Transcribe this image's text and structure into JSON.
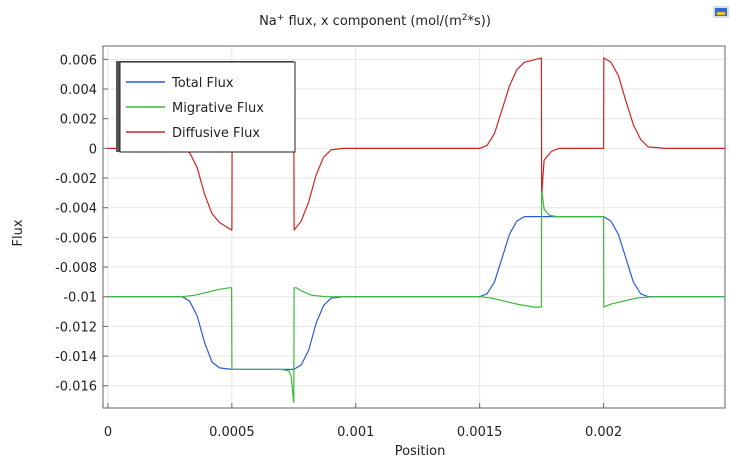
{
  "chart_data": {
    "type": "line",
    "title_main": "Na",
    "title_sup": "+",
    "title_rest": " flux, x component (mol/(m",
    "title_sup2": "2",
    "title_end": "*s))",
    "xlabel": "Position",
    "ylabel": "Flux",
    "xlim": [
      -2e-05,
      0.00249
    ],
    "ylim": [
      -0.0175,
      0.0069
    ],
    "x_ticks": [
      0,
      0.0005,
      0.001,
      0.0015,
      0.002
    ],
    "x_tick_labels": [
      "0",
      "0.0005",
      "0.001",
      "0.0015",
      "0.002"
    ],
    "y_ticks": [
      0.006,
      0.004,
      0.002,
      0,
      -0.002,
      -0.004,
      -0.006,
      -0.008,
      -0.01,
      -0.012,
      -0.014,
      -0.016
    ],
    "y_tick_labels": [
      "0.006",
      "0.004",
      "0.002",
      "0",
      "-0.002",
      "-0.004",
      "-0.006",
      "-0.008",
      "-0.01",
      "-0.012",
      "-0.014",
      "-0.016"
    ],
    "grid": true,
    "legend_position": "top-left",
    "series": [
      {
        "name": "Total Flux",
        "color": "#2a5bd7",
        "x": [
          0,
          0.0003,
          0.00033,
          0.00036,
          0.00039,
          0.00042,
          0.00045,
          0.0005,
          0.00075,
          0.00078,
          0.00081,
          0.00084,
          0.00087,
          0.0009,
          0.00095,
          0.0015,
          0.00153,
          0.00156,
          0.00159,
          0.00162,
          0.00165,
          0.00168,
          0.00175,
          0.002,
          0.00203,
          0.00206,
          0.00209,
          0.00212,
          0.00215,
          0.00218,
          0.00225,
          0.00249
        ],
        "y": [
          -0.01,
          -0.01,
          -0.0103,
          -0.0113,
          -0.0131,
          -0.0144,
          -0.0148,
          -0.0149,
          -0.0149,
          -0.0146,
          -0.0136,
          -0.0118,
          -0.0106,
          -0.0101,
          -0.01,
          -0.01,
          -0.0098,
          -0.009,
          -0.0074,
          -0.0058,
          -0.0049,
          -0.0046,
          -0.0046,
          -0.0046,
          -0.0049,
          -0.0058,
          -0.0074,
          -0.009,
          -0.0098,
          -0.01,
          -0.01,
          -0.01
        ]
      },
      {
        "name": "Migrative Flux",
        "color": "#3cb83c",
        "x": [
          0,
          0.0003,
          0.00035,
          0.0004,
          0.00045,
          0.00049,
          0.000499,
          0.0005,
          0.000501,
          0.00053,
          0.0006,
          0.0007,
          0.00073,
          0.00074,
          0.000749,
          0.00075,
          0.000751,
          0.00076,
          0.00078,
          0.00082,
          0.00088,
          0.00095,
          0.0015,
          0.00155,
          0.0016,
          0.00165,
          0.00172,
          0.001749,
          0.00175,
          0.001751,
          0.00176,
          0.00178,
          0.00181,
          0.00185,
          0.002,
          0.002001,
          0.00203,
          0.00208,
          0.00213,
          0.0022,
          0.00249
        ],
        "y": [
          -0.01,
          -0.01,
          -0.0099,
          -0.0097,
          -0.0095,
          -0.0094,
          -0.0094,
          -0.0149,
          -0.0149,
          -0.0149,
          -0.0149,
          -0.0149,
          -0.015,
          -0.0154,
          -0.0171,
          -0.0171,
          -0.0094,
          -0.0094,
          -0.0096,
          -0.0099,
          -0.01,
          -0.01,
          -0.01,
          -0.0101,
          -0.0103,
          -0.0105,
          -0.0107,
          -0.0107,
          -0.0029,
          -0.0029,
          -0.0041,
          -0.0045,
          -0.0046,
          -0.0046,
          -0.0046,
          -0.0107,
          -0.0105,
          -0.0103,
          -0.0101,
          -0.01,
          -0.01
        ]
      },
      {
        "name": "Diffusive Flux",
        "color": "#d02424",
        "x": [
          0,
          0.0003,
          0.00033,
          0.00036,
          0.00039,
          0.00042,
          0.00045,
          0.000499,
          0.0005,
          0.000501,
          0.00073,
          0.00074,
          0.000749,
          0.00075,
          0.000751,
          0.00078,
          0.00081,
          0.00084,
          0.00087,
          0.0009,
          0.00095,
          0.0015,
          0.00153,
          0.00156,
          0.00159,
          0.00162,
          0.00165,
          0.00168,
          0.001749,
          0.00175,
          0.001751,
          0.00176,
          0.00179,
          0.00182,
          0.002,
          0.002001,
          0.00203,
          0.00206,
          0.00209,
          0.00212,
          0.00215,
          0.00218,
          0.00225,
          0.00249
        ],
        "y": [
          0,
          0,
          -0.0003,
          -0.0013,
          -0.0031,
          -0.0044,
          -0.005,
          -0.0055,
          -0.0055,
          0,
          0,
          0,
          0.0023,
          0.0023,
          -0.0055,
          -0.0049,
          -0.0036,
          -0.0018,
          -0.0006,
          -0.0001,
          0,
          0,
          0.0002,
          0.001,
          0.0026,
          0.0042,
          0.0053,
          0.0058,
          0.0061,
          -0.0029,
          -0.0029,
          -0.0008,
          -0.0002,
          0,
          0,
          0.0061,
          0.0058,
          0.0049,
          0.0032,
          0.0016,
          0.0006,
          0.0001,
          0,
          0
        ]
      }
    ]
  }
}
